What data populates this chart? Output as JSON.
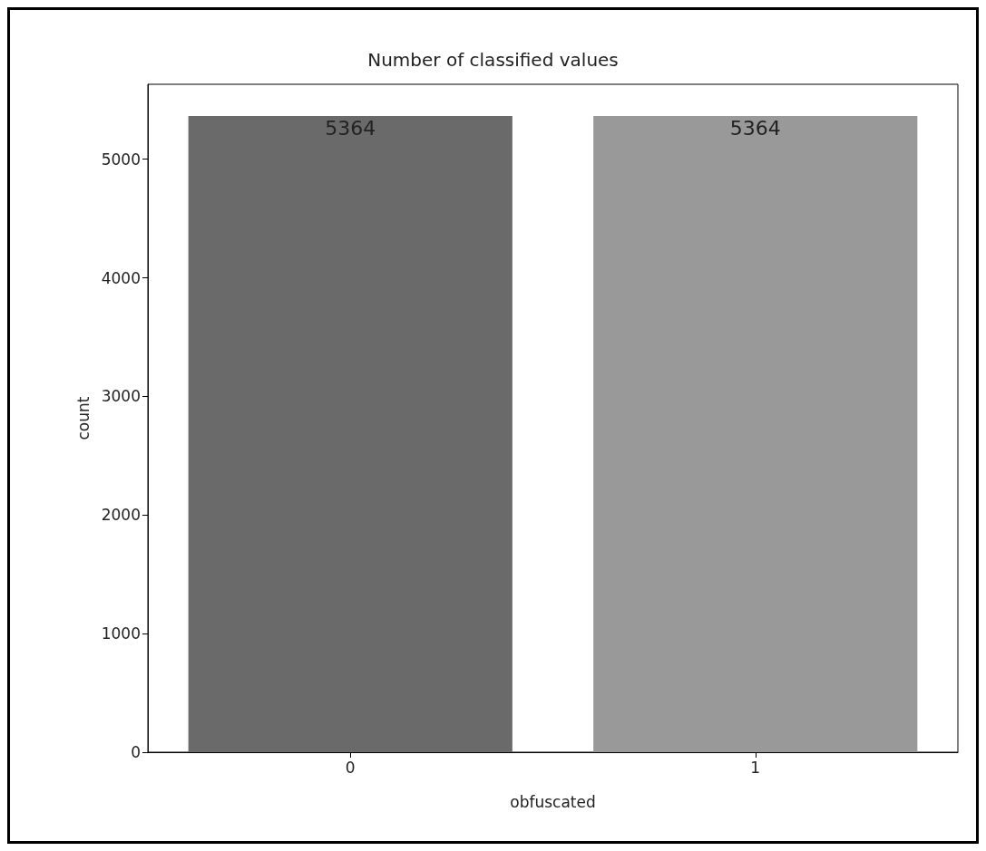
{
  "chart_data": {
    "type": "bar",
    "title": "Number of classified values",
    "xlabel": "obfuscated",
    "ylabel": "count",
    "categories": [
      "0",
      "1"
    ],
    "values": [
      5364,
      5364
    ],
    "colors": [
      "#6a6a6a",
      "#999999"
    ],
    "ylim": [
      0,
      5632
    ],
    "yticks": [
      0,
      1000,
      2000,
      3000,
      4000,
      5000
    ],
    "grid": false,
    "data_labels": true
  }
}
